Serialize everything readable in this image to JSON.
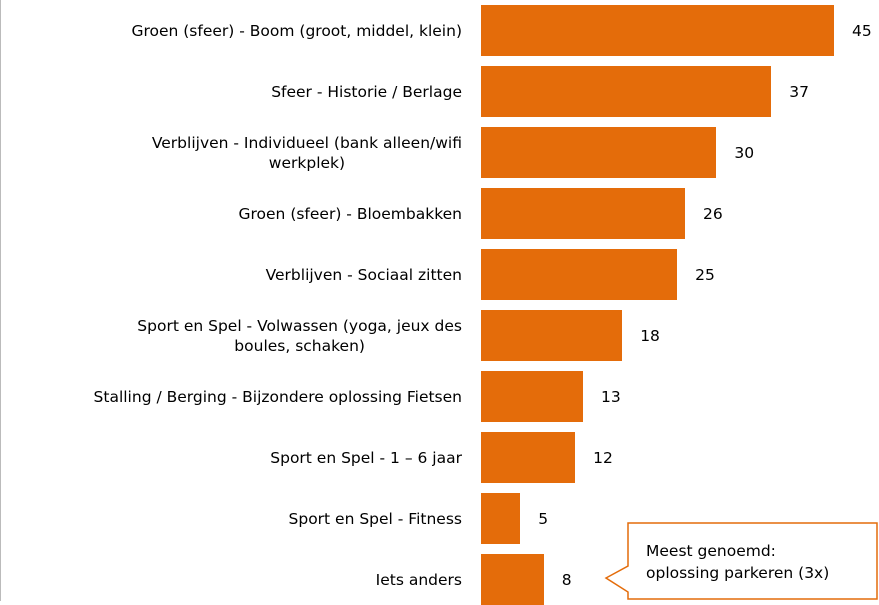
{
  "chart_data": {
    "type": "bar",
    "orientation": "horizontal",
    "categories": [
      "Groen (sfeer) - Boom (groot, middel, klein)",
      "Sfeer - Historie / Berlage",
      "Verblijven - Individueel (bank alleen/wifi\nwerkplek)",
      "Groen (sfeer) - Bloembakken",
      "Verblijven - Sociaal zitten",
      "Sport en Spel - Volwassen (yoga, jeux des\nboules, schaken)",
      "Stalling / Berging - Bijzondere oplossing Fietsen",
      "Sport en Spel - 1 – 6 jaar",
      "Sport en Spel - Fitness",
      "Iets anders"
    ],
    "values": [
      45,
      37,
      30,
      26,
      25,
      18,
      13,
      12,
      5,
      8
    ],
    "color": "#e46c0a",
    "annotation": "Meest genoemd:\noplossing parkeren (3x)"
  }
}
